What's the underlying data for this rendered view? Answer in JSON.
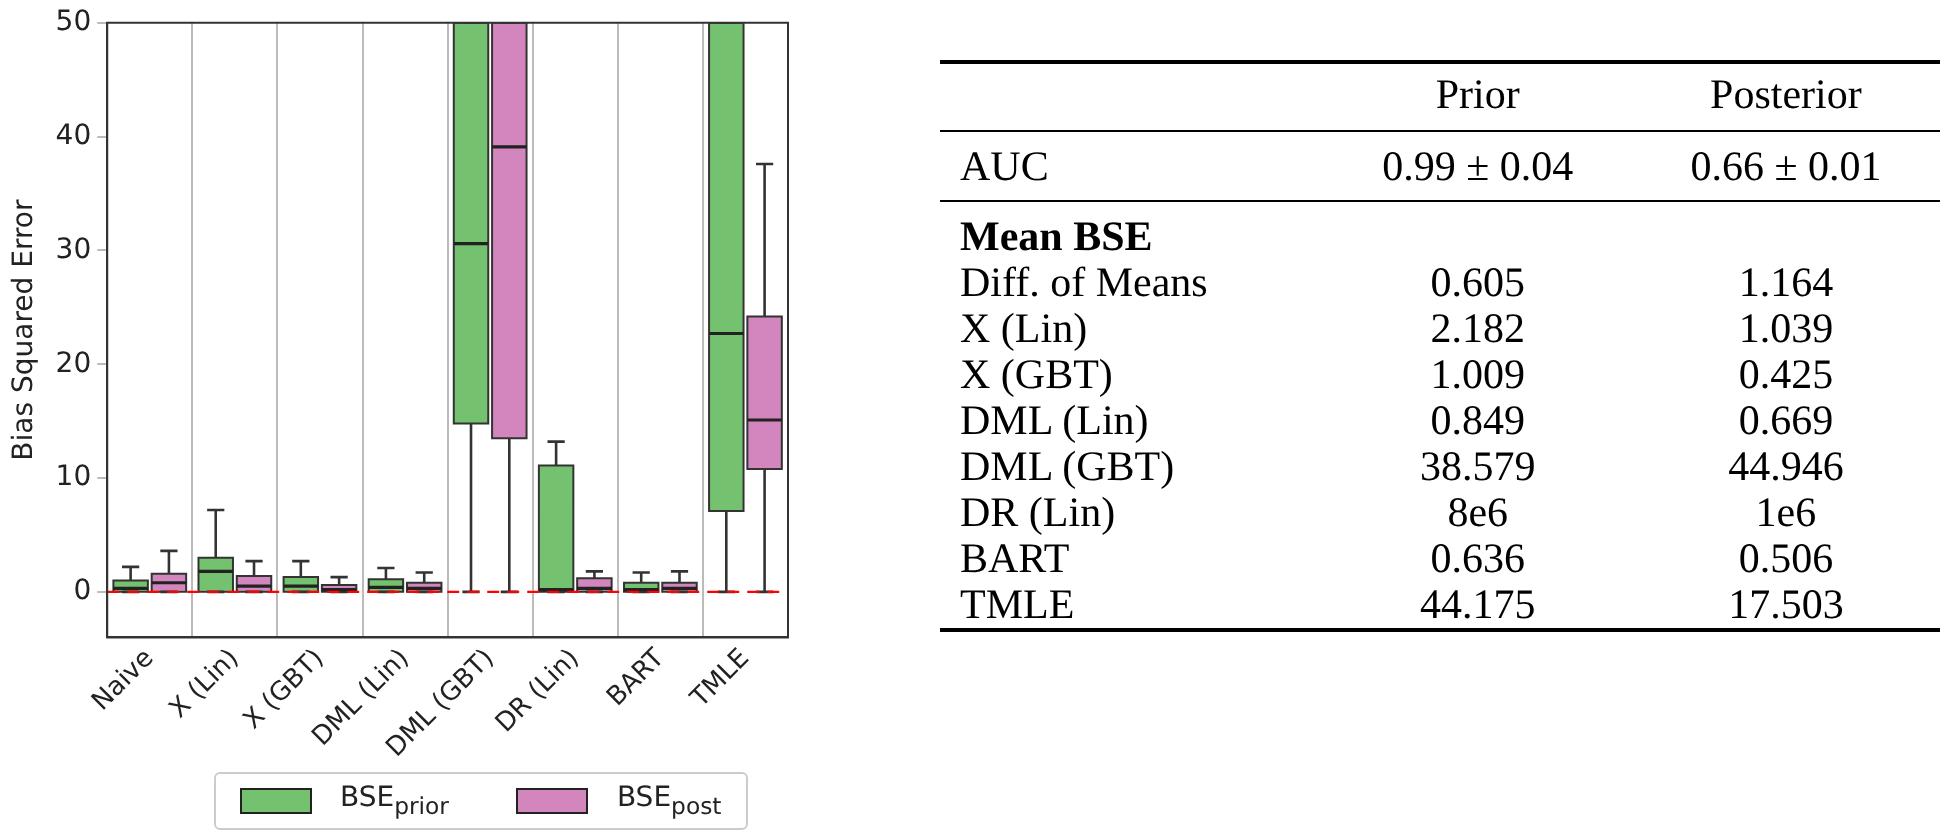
{
  "chart_data": [
    {
      "type": "box",
      "ylabel": "Bias Squared Error",
      "categories": [
        "Naive",
        "X (Lin)",
        "X (GBT)",
        "DML (Lin)",
        "DML (GBT)",
        "DR (Lin)",
        "BART",
        "TMLE"
      ],
      "ylim": [
        -4,
        50
      ],
      "yticks": [
        0,
        10,
        20,
        30,
        40,
        50
      ],
      "grid": "x",
      "legend": "bottom",
      "ref_lines": [
        {
          "axis": "y",
          "value": 0,
          "color": "#ff0000",
          "line_style": "dashed"
        }
      ],
      "series": [
        {
          "name": "BSE$_{prior}$",
          "color": "#74c16f",
          "boxes": [
            {
              "low": 0,
              "q1": 0,
              "median": 0.3,
              "q3": 1.0,
              "high": 2.2
            },
            {
              "low": 0,
              "q1": 0,
              "median": 1.8,
              "q3": 3.0,
              "high": 7.2
            },
            {
              "low": 0,
              "q1": 0,
              "median": 0.5,
              "q3": 1.3,
              "high": 2.7
            },
            {
              "low": 0,
              "q1": 0,
              "median": 0.4,
              "q3": 1.1,
              "high": 2.1
            },
            {
              "low": 0,
              "q1": 14.8,
              "median": 30.6,
              "q3": 50,
              "high": 50
            },
            {
              "low": 0,
              "q1": 0,
              "median": 0.2,
              "q3": 11.1,
              "high": 13.2
            },
            {
              "low": 0,
              "q1": 0,
              "median": 0.2,
              "q3": 0.8,
              "high": 1.7
            },
            {
              "low": 0,
              "q1": 7.1,
              "median": 22.7,
              "q3": 50,
              "high": 50
            }
          ]
        },
        {
          "name": "BSE$_{post}$",
          "color": "#d286bd",
          "boxes": [
            {
              "low": 0,
              "q1": 0,
              "median": 0.8,
              "q3": 1.6,
              "high": 3.6
            },
            {
              "low": 0,
              "q1": 0,
              "median": 0.5,
              "q3": 1.4,
              "high": 2.7
            },
            {
              "low": 0,
              "q1": 0,
              "median": 0.2,
              "q3": 0.6,
              "high": 1.3
            },
            {
              "low": 0,
              "q1": 0,
              "median": 0.3,
              "q3": 0.8,
              "high": 1.7
            },
            {
              "low": 0,
              "q1": 13.5,
              "median": 39.1,
              "q3": 50,
              "high": 50
            },
            {
              "low": 0,
              "q1": 0,
              "median": 0.3,
              "q3": 1.2,
              "high": 1.8
            },
            {
              "low": 0,
              "q1": 0,
              "median": 0.3,
              "q3": 0.8,
              "high": 1.8
            },
            {
              "low": 0,
              "q1": 10.8,
              "median": 15.1,
              "q3": 24.2,
              "high": 37.6
            }
          ]
        }
      ]
    },
    {
      "type": "other",
      "categories": [
        "Prior",
        "Posterior"
      ],
      "y_categories": [
        "AUC",
        "Mean BSE",
        "Diff. of Means",
        "X (Lin)",
        "X (GBT)",
        "DML (Lin)",
        "DML (GBT)",
        "DR (Lin)",
        "BART",
        "TMLE"
      ],
      "cell_labels": [
        [
          "0.99 ± 0.04",
          "0.66 ± 0.01"
        ],
        [
          null,
          null
        ],
        [
          "0.605",
          "1.164"
        ],
        [
          "2.182",
          "1.039"
        ],
        [
          "1.009",
          "0.425"
        ],
        [
          "0.849",
          "0.669"
        ],
        [
          "38.579",
          "44.946"
        ],
        [
          "8e6",
          "1e6"
        ],
        [
          "0.636",
          "0.506"
        ],
        [
          "44.175",
          "17.503"
        ]
      ]
    }
  ]
}
